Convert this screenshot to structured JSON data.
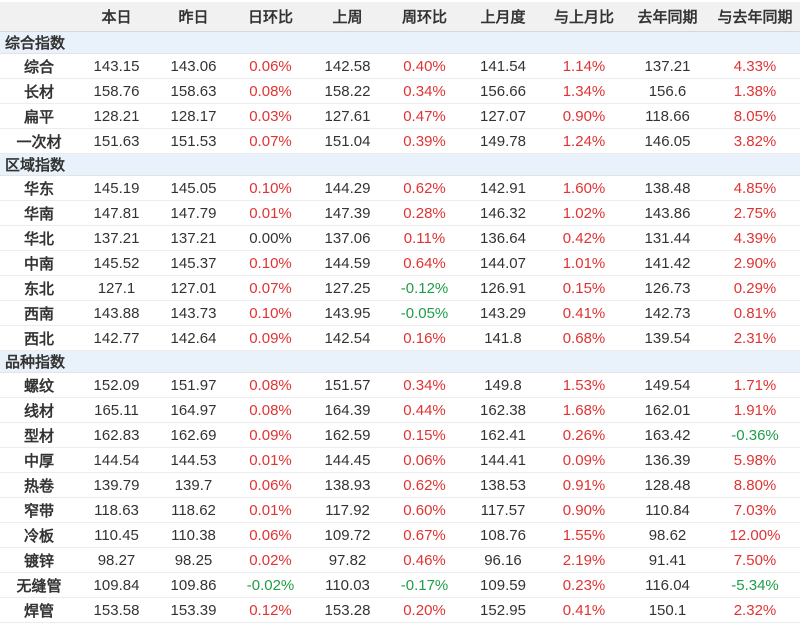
{
  "colors": {
    "up": "#e03333",
    "down": "#1f9d4a",
    "flat": "#333333",
    "header_bg": "#f1f1f1",
    "section_bg": "#e9f2fa",
    "text": "#333333"
  },
  "chart_data": {
    "type": "table",
    "columns": [
      "",
      "本日",
      "昨日",
      "日环比",
      "上周",
      "周环比",
      "上月度",
      "与上月比",
      "去年同期",
      "与去年同期"
    ],
    "percent_column_indexes": [
      2,
      4,
      6,
      8
    ],
    "sections": [
      {
        "title": "综合指数",
        "rows": [
          {
            "label": "综合",
            "values": [
              "143.15",
              "143.06",
              "0.06%",
              "142.58",
              "0.40%",
              "141.54",
              "1.14%",
              "137.21",
              "4.33%"
            ]
          },
          {
            "label": "长材",
            "values": [
              "158.76",
              "158.63",
              "0.08%",
              "158.22",
              "0.34%",
              "156.66",
              "1.34%",
              "156.6",
              "1.38%"
            ]
          },
          {
            "label": "扁平",
            "values": [
              "128.21",
              "128.17",
              "0.03%",
              "127.61",
              "0.47%",
              "127.07",
              "0.90%",
              "118.66",
              "8.05%"
            ]
          },
          {
            "label": "一次材",
            "values": [
              "151.63",
              "151.53",
              "0.07%",
              "151.04",
              "0.39%",
              "149.78",
              "1.24%",
              "146.05",
              "3.82%"
            ]
          }
        ]
      },
      {
        "title": "区域指数",
        "rows": [
          {
            "label": "华东",
            "values": [
              "145.19",
              "145.05",
              "0.10%",
              "144.29",
              "0.62%",
              "142.91",
              "1.60%",
              "138.48",
              "4.85%"
            ]
          },
          {
            "label": "华南",
            "values": [
              "147.81",
              "147.79",
              "0.01%",
              "147.39",
              "0.28%",
              "146.32",
              "1.02%",
              "143.86",
              "2.75%"
            ]
          },
          {
            "label": "华北",
            "values": [
              "137.21",
              "137.21",
              "0.00%",
              "137.06",
              "0.11%",
              "136.64",
              "0.42%",
              "131.44",
              "4.39%"
            ]
          },
          {
            "label": "中南",
            "values": [
              "145.52",
              "145.37",
              "0.10%",
              "144.59",
              "0.64%",
              "144.07",
              "1.01%",
              "141.42",
              "2.90%"
            ]
          },
          {
            "label": "东北",
            "values": [
              "127.1",
              "127.01",
              "0.07%",
              "127.25",
              "-0.12%",
              "126.91",
              "0.15%",
              "126.73",
              "0.29%"
            ]
          },
          {
            "label": "西南",
            "values": [
              "143.88",
              "143.73",
              "0.10%",
              "143.95",
              "-0.05%",
              "143.29",
              "0.41%",
              "142.73",
              "0.81%"
            ]
          },
          {
            "label": "西北",
            "values": [
              "142.77",
              "142.64",
              "0.09%",
              "142.54",
              "0.16%",
              "141.8",
              "0.68%",
              "139.54",
              "2.31%"
            ]
          }
        ]
      },
      {
        "title": "品种指数",
        "rows": [
          {
            "label": "螺纹",
            "values": [
              "152.09",
              "151.97",
              "0.08%",
              "151.57",
              "0.34%",
              "149.8",
              "1.53%",
              "149.54",
              "1.71%"
            ]
          },
          {
            "label": "线材",
            "values": [
              "165.11",
              "164.97",
              "0.08%",
              "164.39",
              "0.44%",
              "162.38",
              "1.68%",
              "162.01",
              "1.91%"
            ]
          },
          {
            "label": "型材",
            "values": [
              "162.83",
              "162.69",
              "0.09%",
              "162.59",
              "0.15%",
              "162.41",
              "0.26%",
              "163.42",
              "-0.36%"
            ]
          },
          {
            "label": "中厚",
            "values": [
              "144.54",
              "144.53",
              "0.01%",
              "144.45",
              "0.06%",
              "144.41",
              "0.09%",
              "136.39",
              "5.98%"
            ]
          },
          {
            "label": "热卷",
            "values": [
              "139.79",
              "139.7",
              "0.06%",
              "138.93",
              "0.62%",
              "138.53",
              "0.91%",
              "128.48",
              "8.80%"
            ]
          },
          {
            "label": "窄带",
            "values": [
              "118.63",
              "118.62",
              "0.01%",
              "117.92",
              "0.60%",
              "117.57",
              "0.90%",
              "110.84",
              "7.03%"
            ]
          },
          {
            "label": "冷板",
            "values": [
              "110.45",
              "110.38",
              "0.06%",
              "109.72",
              "0.67%",
              "108.76",
              "1.55%",
              "98.62",
              "12.00%"
            ]
          },
          {
            "label": "镀锌",
            "values": [
              "98.27",
              "98.25",
              "0.02%",
              "97.82",
              "0.46%",
              "96.16",
              "2.19%",
              "91.41",
              "7.50%"
            ]
          },
          {
            "label": "无缝管",
            "values": [
              "109.84",
              "109.86",
              "-0.02%",
              "110.03",
              "-0.17%",
              "109.59",
              "0.23%",
              "116.04",
              "-5.34%"
            ]
          },
          {
            "label": "焊管",
            "values": [
              "153.58",
              "153.39",
              "0.12%",
              "153.28",
              "0.20%",
              "152.95",
              "0.41%",
              "150.1",
              "2.32%"
            ]
          }
        ]
      }
    ]
  }
}
